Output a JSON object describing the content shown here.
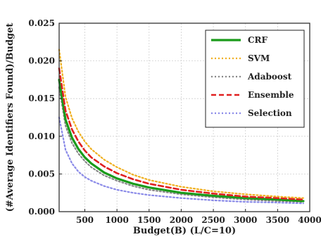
{
  "chart_data": {
    "type": "line",
    "title": "",
    "xlabel": "Budget(B) (L/C=10)",
    "ylabel": "(#Average Identifiers Found)/Budget",
    "xlim": [
      100,
      4000
    ],
    "ylim": [
      0,
      0.025
    ],
    "x_ticks": [
      500,
      1000,
      1500,
      2000,
      2500,
      3000,
      3500,
      4000
    ],
    "x_tick_labels": [
      "500",
      "1000",
      "1500",
      "2000",
      "2500",
      "3000",
      "3500",
      "4000"
    ],
    "y_ticks": [
      0,
      0.005,
      0.01,
      0.015,
      0.02,
      0.025
    ],
    "y_tick_labels": [
      "0.000",
      "0.005",
      "0.010",
      "0.015",
      "0.020",
      "0.025"
    ],
    "grid": true,
    "legend_position": "top-right",
    "x": [
      100,
      200,
      300,
      400,
      500,
      600,
      800,
      1000,
      1250,
      1500,
      2000,
      2500,
      3000,
      3500,
      3900
    ],
    "series": [
      {
        "name": "CRF",
        "color": "#1a9b1a",
        "style": "solid",
        "values": [
          0.0175,
          0.0122,
          0.0098,
          0.0083,
          0.0072,
          0.0064,
          0.0052,
          0.0044,
          0.0037,
          0.0032,
          0.0025,
          0.0021,
          0.0018,
          0.0016,
          0.0014
        ]
      },
      {
        "name": "SVM",
        "color": "#f0b020",
        "style": "dotted",
        "values": [
          0.0215,
          0.0152,
          0.0124,
          0.0106,
          0.0093,
          0.0083,
          0.0069,
          0.0059,
          0.0049,
          0.0042,
          0.0033,
          0.0027,
          0.0023,
          0.002,
          0.0018
        ]
      },
      {
        "name": "Adaboost",
        "color": "#888888",
        "style": "dotted",
        "values": [
          0.0165,
          0.0114,
          0.0091,
          0.0077,
          0.0067,
          0.0059,
          0.0048,
          0.0041,
          0.0034,
          0.0029,
          0.0023,
          0.0019,
          0.0016,
          0.0014,
          0.0013
        ]
      },
      {
        "name": "Ensemble",
        "color": "#e02020",
        "style": "dashed",
        "values": [
          0.019,
          0.0134,
          0.0109,
          0.0093,
          0.0081,
          0.0072,
          0.006,
          0.0051,
          0.0043,
          0.0037,
          0.0029,
          0.0024,
          0.002,
          0.0018,
          0.0016
        ]
      },
      {
        "name": "Selection",
        "color": "#8a8ae8",
        "style": "dotted",
        "values": [
          0.0125,
          0.0082,
          0.0064,
          0.0053,
          0.0046,
          0.0041,
          0.0034,
          0.0029,
          0.0025,
          0.0022,
          0.0018,
          0.0015,
          0.0013,
          0.0012,
          0.0011
        ]
      }
    ]
  }
}
